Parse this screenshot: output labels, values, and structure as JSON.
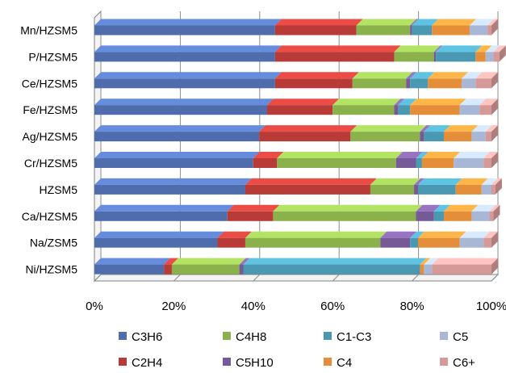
{
  "chart_data": {
    "type": "bar",
    "orientation": "horizontal",
    "stacked": "percent",
    "categories": [
      "Mn/HZSM5",
      "P/HZSM5",
      "Ce/HZSM5",
      "Fe/HZSM5",
      "Ag/HZSM5",
      "Cr/HZSM5",
      "HZSM5",
      "Ca/HZSM5",
      "Na/ZSM5",
      "Ni/HZSM5"
    ],
    "x_ticks": [
      "0%",
      "20%",
      "40%",
      "60%",
      "80%",
      "100%"
    ],
    "xlim": [
      0,
      100
    ],
    "grid": true,
    "legend_position": "bottom",
    "series": [
      {
        "name": "C3H6",
        "color": "#4f6dad",
        "values": [
          45.5,
          45.5,
          45.5,
          43.5,
          41.5,
          40,
          38,
          33.5,
          31,
          17.5
        ]
      },
      {
        "name": "C2H4",
        "color": "#b83b37",
        "values": [
          20.5,
          30,
          19.5,
          16.5,
          23,
          6,
          31.5,
          11.5,
          7,
          2
        ]
      },
      {
        "name": "C4H8",
        "color": "#8bb14d",
        "values": [
          13.5,
          10,
          13.5,
          15.5,
          17.5,
          30,
          11,
          36,
          34,
          17
        ]
      },
      {
        "name": "C5H10",
        "color": "#765a97",
        "values": [
          0.5,
          0.5,
          1,
          1,
          1,
          5,
          1,
          4.5,
          7.5,
          1
        ]
      },
      {
        "name": "C1-C3",
        "color": "#4a98b2",
        "values": [
          5,
          10,
          4.5,
          3,
          5,
          1.5,
          9.5,
          2.5,
          2,
          44.5
        ]
      },
      {
        "name": "C4",
        "color": "#e48e39",
        "values": [
          9.5,
          2.5,
          8.5,
          12.5,
          7,
          8,
          6.5,
          7,
          10.5,
          1
        ]
      },
      {
        "name": "C5",
        "color": "#a9b7d6",
        "values": [
          4.5,
          2,
          3.5,
          5,
          3.5,
          7.5,
          2.5,
          4.5,
          6,
          2
        ]
      },
      {
        "name": "C6+",
        "color": "#d59a97",
        "values": [
          1,
          1.5,
          4,
          3,
          1.5,
          2,
          1,
          1,
          2,
          15
        ]
      }
    ]
  }
}
